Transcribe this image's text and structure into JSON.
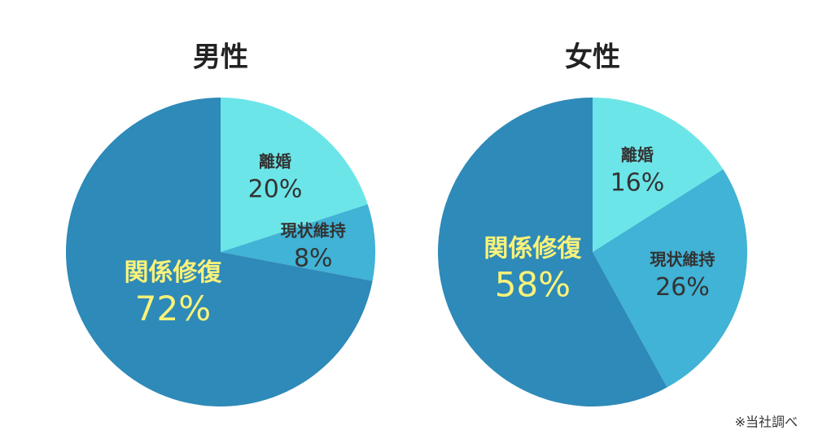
{
  "chart_data": [
    {
      "type": "pie",
      "title": "男性",
      "categories": [
        "離婚",
        "現状維持",
        "関係修復"
      ],
      "values": [
        20,
        8,
        72
      ],
      "value_labels": [
        "20%",
        "8%",
        "72%"
      ],
      "colors": [
        "#6ce5e8",
        "#40b3d6",
        "#2e8ab8"
      ],
      "label_colors": [
        "#333333",
        "#333333",
        "#f9f27a"
      ]
    },
    {
      "type": "pie",
      "title": "女性",
      "categories": [
        "離婚",
        "現状維持",
        "関係修復"
      ],
      "values": [
        16,
        26,
        58
      ],
      "value_labels": [
        "16%",
        "26%",
        "58%"
      ],
      "colors": [
        "#6ce5e8",
        "#40b3d6",
        "#2e8ab8"
      ],
      "label_colors": [
        "#333333",
        "#333333",
        "#f9f27a"
      ]
    }
  ],
  "note": "※当社調べ"
}
